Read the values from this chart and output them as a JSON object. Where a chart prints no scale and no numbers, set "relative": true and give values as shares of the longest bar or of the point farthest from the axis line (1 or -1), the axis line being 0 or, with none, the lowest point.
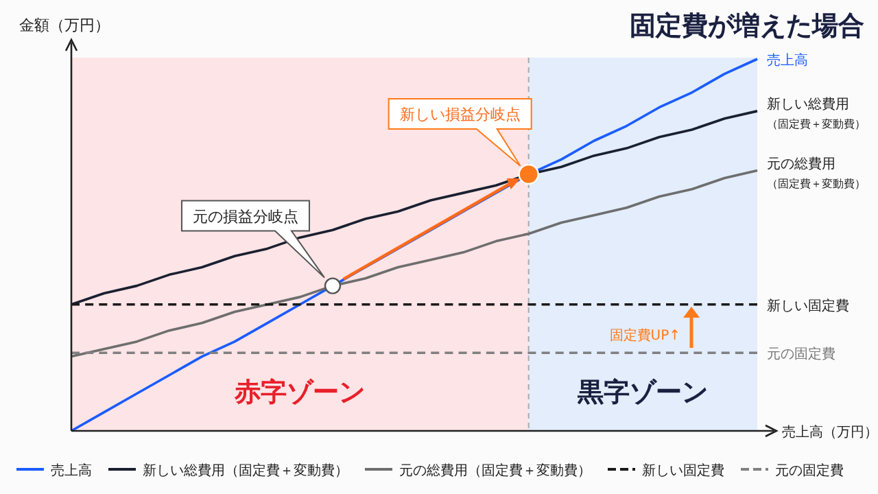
{
  "chart_data": {
    "type": "line",
    "title": "固定費が増えた場合",
    "xlabel": "売上高（万円）",
    "ylabel": "金額（万円）",
    "relative": true,
    "legend": "bottom",
    "categories": [
      null,
      null,
      null,
      null,
      null,
      null,
      null,
      null,
      null,
      null,
      null,
      null,
      null,
      null,
      null,
      null,
      null,
      null,
      null,
      null,
      null,
      null
    ],
    "series": [
      {
        "name": "売上高",
        "color": "#1a5cff",
        "values": [
          0,
          0.05,
          0.1,
          0.15,
          0.2,
          0.24,
          0.29,
          0.34,
          0.39,
          0.44,
          0.49,
          0.54,
          0.59,
          0.64,
          0.69,
          0.73,
          0.78,
          0.82,
          0.87,
          0.91,
          0.96,
          1
        ]
      },
      {
        "name": "新しい総費用（固定費＋変動費）",
        "color": "#1a2030",
        "values": [
          0.34,
          0.37,
          0.39,
          0.42,
          0.44,
          0.47,
          0.49,
          0.52,
          0.54,
          0.57,
          0.59,
          0.62,
          0.64,
          0.66,
          0.69,
          0.71,
          0.74,
          0.76,
          0.79,
          0.81,
          0.84,
          0.86
        ]
      },
      {
        "name": "元の総費用（固定費＋変動費）",
        "color": "#6e6e6e",
        "values": [
          0.2,
          0.22,
          0.24,
          0.27,
          0.29,
          0.32,
          0.34,
          0.36,
          0.39,
          0.41,
          0.44,
          0.46,
          0.48,
          0.51,
          0.53,
          0.56,
          0.58,
          0.6,
          0.63,
          0.65,
          0.68,
          0.7
        ]
      },
      {
        "name": "新しい固定費",
        "color": "#1a1a1a",
        "line_style": "dashed",
        "values": [
          0.34,
          0.34,
          0.34,
          0.34,
          0.34,
          0.34,
          0.34,
          0.34,
          0.34,
          0.34,
          0.34,
          0.34,
          0.34,
          0.34,
          0.34,
          0.34,
          0.34,
          0.34,
          0.34,
          0.34,
          0.34,
          0.34
        ]
      },
      {
        "name": "元の固定費",
        "color": "#808080",
        "line_style": "dashed",
        "values": [
          0.21,
          0.21,
          0.21,
          0.21,
          0.21,
          0.21,
          0.21,
          0.21,
          0.21,
          0.21,
          0.21,
          0.21,
          0.21,
          0.21,
          0.21,
          0.21,
          0.21,
          0.21,
          0.21,
          0.21,
          0.21,
          0.21
        ]
      }
    ],
    "annotations": [
      "元の損益分岐点",
      "新しい損益分岐点",
      "固定費UP↑",
      "売上高",
      "新しい総費用$_{（固定費＋変動費）}$",
      "元の総費用$_{（固定費＋変動費）}$",
      "新しい固定費",
      "元の固定費",
      "赤字ゾーン",
      "黒字ゾーン"
    ]
  }
}
